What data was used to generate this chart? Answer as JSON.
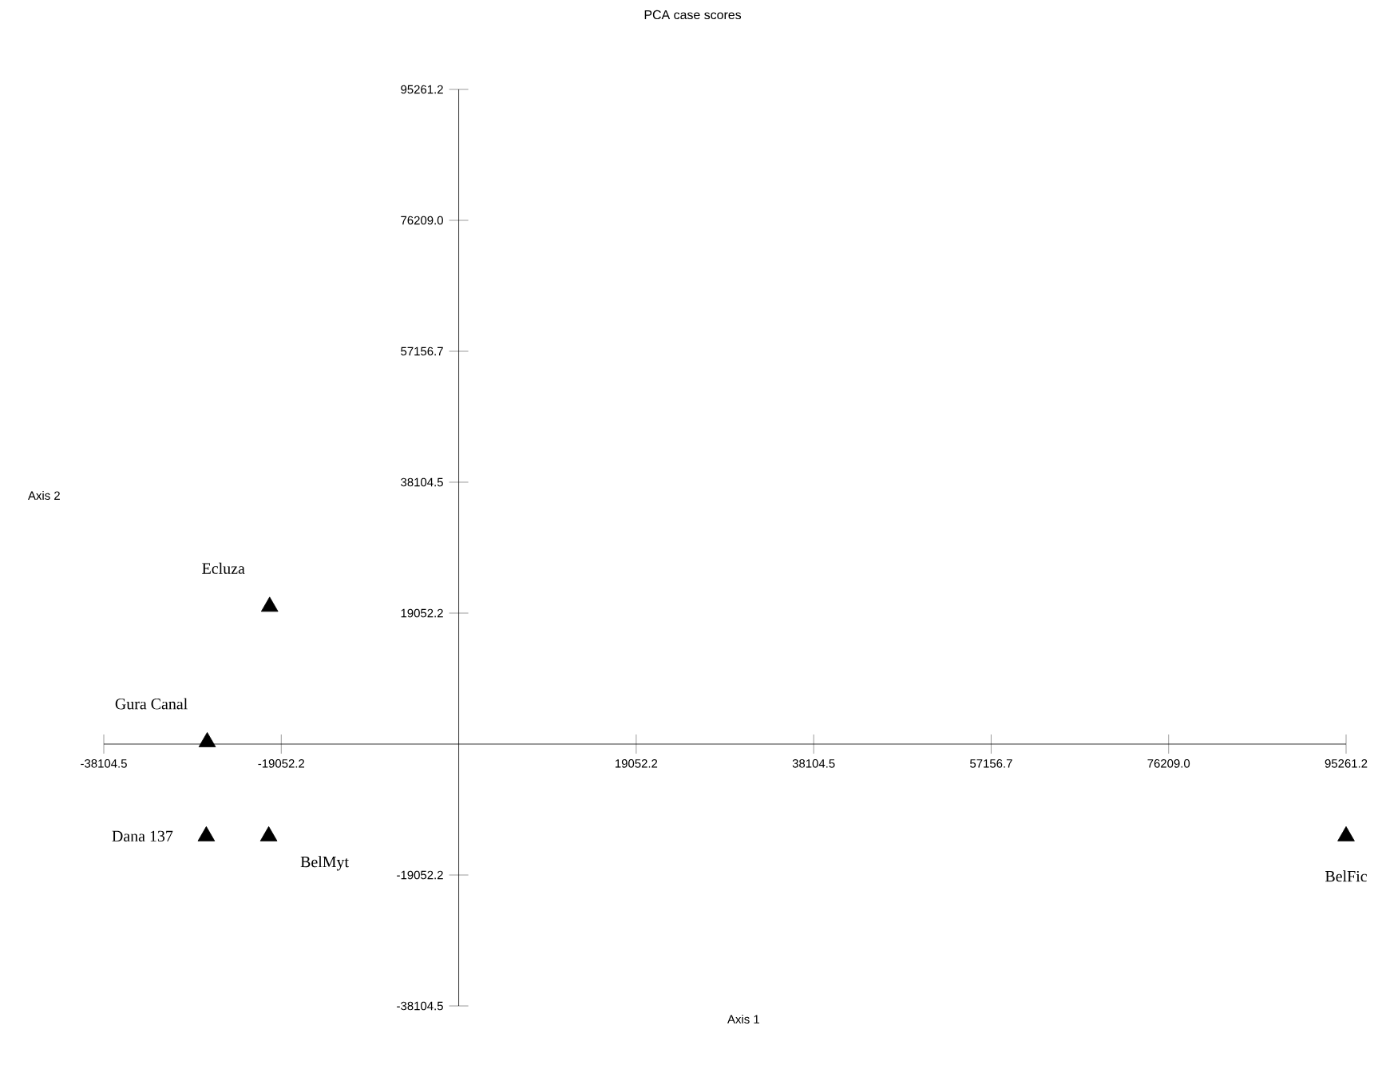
{
  "chart_data": {
    "type": "scatter",
    "title": "PCA case scores",
    "xlabel": "Axis 1",
    "ylabel": "Axis 2",
    "series": [
      {
        "color": "#000000",
        "x": [
          -20300,
          -27000,
          -27100,
          -20400,
          95261.2
        ],
        "values": [
          20000,
          300,
          -13400,
          -13400,
          -13400
        ]
      }
    ],
    "marker": "triangle",
    "xlim": [
      -38104.5,
      95261.2
    ],
    "ylim": [
      -38104.5,
      95261.2
    ],
    "xticks": [
      -38104.5,
      -19052.2,
      19052.2,
      38104.5,
      57156.7,
      {
        "value": 76209,
        "label": "76209.0"
      },
      95261.2
    ],
    "yticks": [
      -38104.5,
      -19052.2,
      19052.2,
      38104.5,
      57156.7,
      {
        "value": 76209,
        "label": "76209.0"
      },
      95261.2
    ],
    "annotations": [
      {
        "text": "Ecluza",
        "x": -20300,
        "y": 20000
      },
      {
        "text": "Gura Canal",
        "x": -27000,
        "y": 300
      },
      {
        "text": "Dana 137",
        "x": -27100,
        "y": -13400
      },
      {
        "text": "BelMyt",
        "x": -20400,
        "y": -13400
      },
      {
        "text": "BelFic",
        "x": 95261.2,
        "y": -13400
      }
    ]
  }
}
